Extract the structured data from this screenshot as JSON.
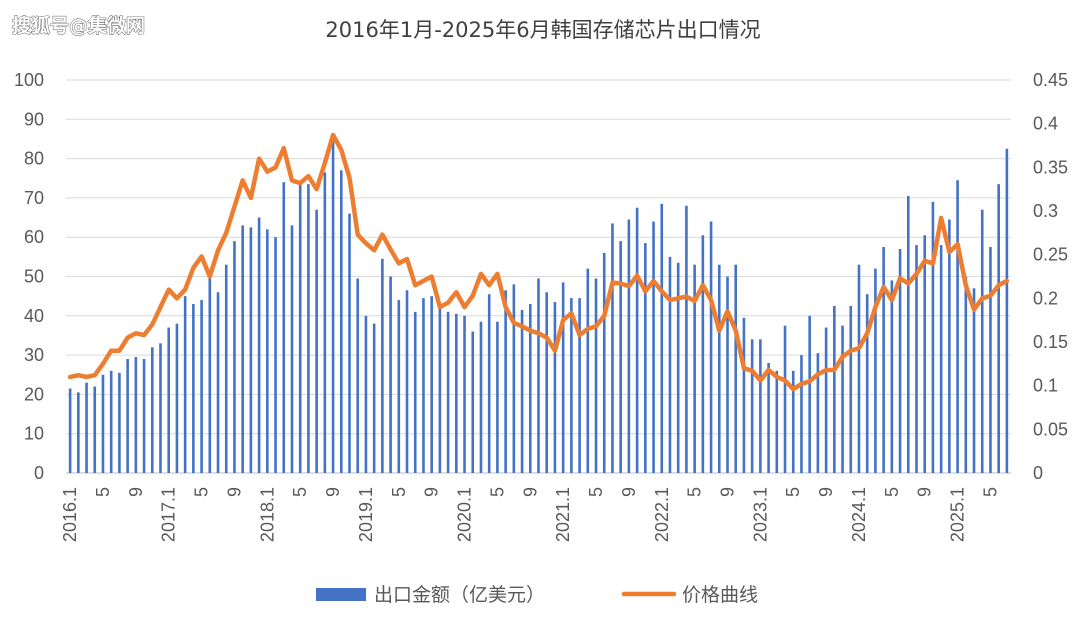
{
  "watermark": "搜狐号@集微网",
  "chart_data": {
    "type": "bar+line",
    "title": "2016年1月-2025年6月韩国存储芯片出口情况",
    "xlabel": "",
    "ylabel": "",
    "y_left": {
      "min": 0,
      "max": 100,
      "ticks": [
        "0",
        "10",
        "20",
        "30",
        "40",
        "50",
        "60",
        "70",
        "80",
        "90",
        "100"
      ]
    },
    "y_right": {
      "min": 0,
      "max": 0.45,
      "ticks": [
        "0",
        "0.05",
        "0.1",
        "0.15",
        "0.2",
        "0.25",
        "0.3",
        "0.35",
        "0.4",
        "0.45"
      ]
    },
    "x_tick_labels": [
      "2016.1",
      "5",
      "9",
      "2017.1",
      "5",
      "9",
      "2018.1",
      "5",
      "9",
      "2019.1",
      "5",
      "9",
      "2020.1",
      "5",
      "9",
      "2021.1",
      "5",
      "9",
      "2022.1",
      "5",
      "9",
      "2023.1",
      "5",
      "9",
      "2024.1",
      "5",
      "9",
      "2025.1",
      "5"
    ],
    "legend_position": "bottom",
    "grid": "horizontal",
    "colors": {
      "bar": "#4472C4",
      "line": "#ED7D31"
    },
    "series": [
      {
        "name": "出口金额（亿美元）",
        "type": "bar",
        "axis": "left",
        "values": [
          21.5,
          20.5,
          23,
          22,
          25,
          26,
          25.5,
          29,
          29.5,
          29,
          32,
          33,
          37,
          38,
          45,
          43,
          44,
          50,
          46,
          53,
          59,
          63,
          62.5,
          65,
          62,
          60,
          74,
          63,
          73.5,
          73.5,
          67,
          76.5,
          86,
          77,
          66,
          49.5,
          40,
          38,
          54.5,
          50,
          44,
          46.5,
          41,
          44.5,
          45,
          43,
          41,
          40.5,
          40,
          36,
          38.5,
          45.5,
          38.5,
          46.5,
          48,
          41.5,
          43,
          49.5,
          46,
          43.5,
          48.5,
          44.5,
          44.5,
          52,
          49.5,
          56,
          63.5,
          59,
          64.5,
          67.5,
          58.5,
          64,
          68.5,
          55,
          53.5,
          68,
          53,
          60.5,
          64,
          53,
          50,
          53,
          39.5,
          34,
          34,
          28,
          26,
          37.5,
          26,
          30,
          40,
          30.5,
          37,
          42.5,
          37.5,
          42.5,
          53,
          45.5,
          52,
          57.5,
          49,
          57,
          70.5,
          58,
          60.5,
          69,
          58,
          64.5,
          74.5,
          50,
          47,
          67,
          57.5,
          73.5,
          82.5
        ]
      },
      {
        "name": "价格曲线",
        "type": "line",
        "axis": "right",
        "values": [
          0.11,
          0.112,
          0.11,
          0.112,
          0.125,
          0.14,
          0.14,
          0.155,
          0.16,
          0.158,
          0.17,
          0.19,
          0.21,
          0.2,
          0.21,
          0.235,
          0.248,
          0.225,
          0.255,
          0.275,
          0.305,
          0.335,
          0.315,
          0.36,
          0.345,
          0.35,
          0.372,
          0.335,
          0.332,
          0.34,
          0.325,
          0.355,
          0.387,
          0.37,
          0.338,
          0.273,
          0.263,
          0.255,
          0.273,
          0.256,
          0.24,
          0.245,
          0.215,
          0.22,
          0.225,
          0.19,
          0.195,
          0.207,
          0.19,
          0.203,
          0.228,
          0.215,
          0.228,
          0.19,
          0.172,
          0.168,
          0.163,
          0.16,
          0.155,
          0.14,
          0.175,
          0.183,
          0.158,
          0.165,
          0.168,
          0.18,
          0.218,
          0.217,
          0.214,
          0.226,
          0.208,
          0.22,
          0.208,
          0.198,
          0.2,
          0.202,
          0.197,
          0.215,
          0.198,
          0.163,
          0.185,
          0.163,
          0.12,
          0.117,
          0.106,
          0.118,
          0.11,
          0.106,
          0.096,
          0.102,
          0.105,
          0.113,
          0.118,
          0.118,
          0.133,
          0.14,
          0.143,
          0.16,
          0.19,
          0.213,
          0.198,
          0.223,
          0.217,
          0.228,
          0.243,
          0.24,
          0.292,
          0.253,
          0.262,
          0.215,
          0.187,
          0.2,
          0.203,
          0.215,
          0.22
        ]
      }
    ]
  }
}
